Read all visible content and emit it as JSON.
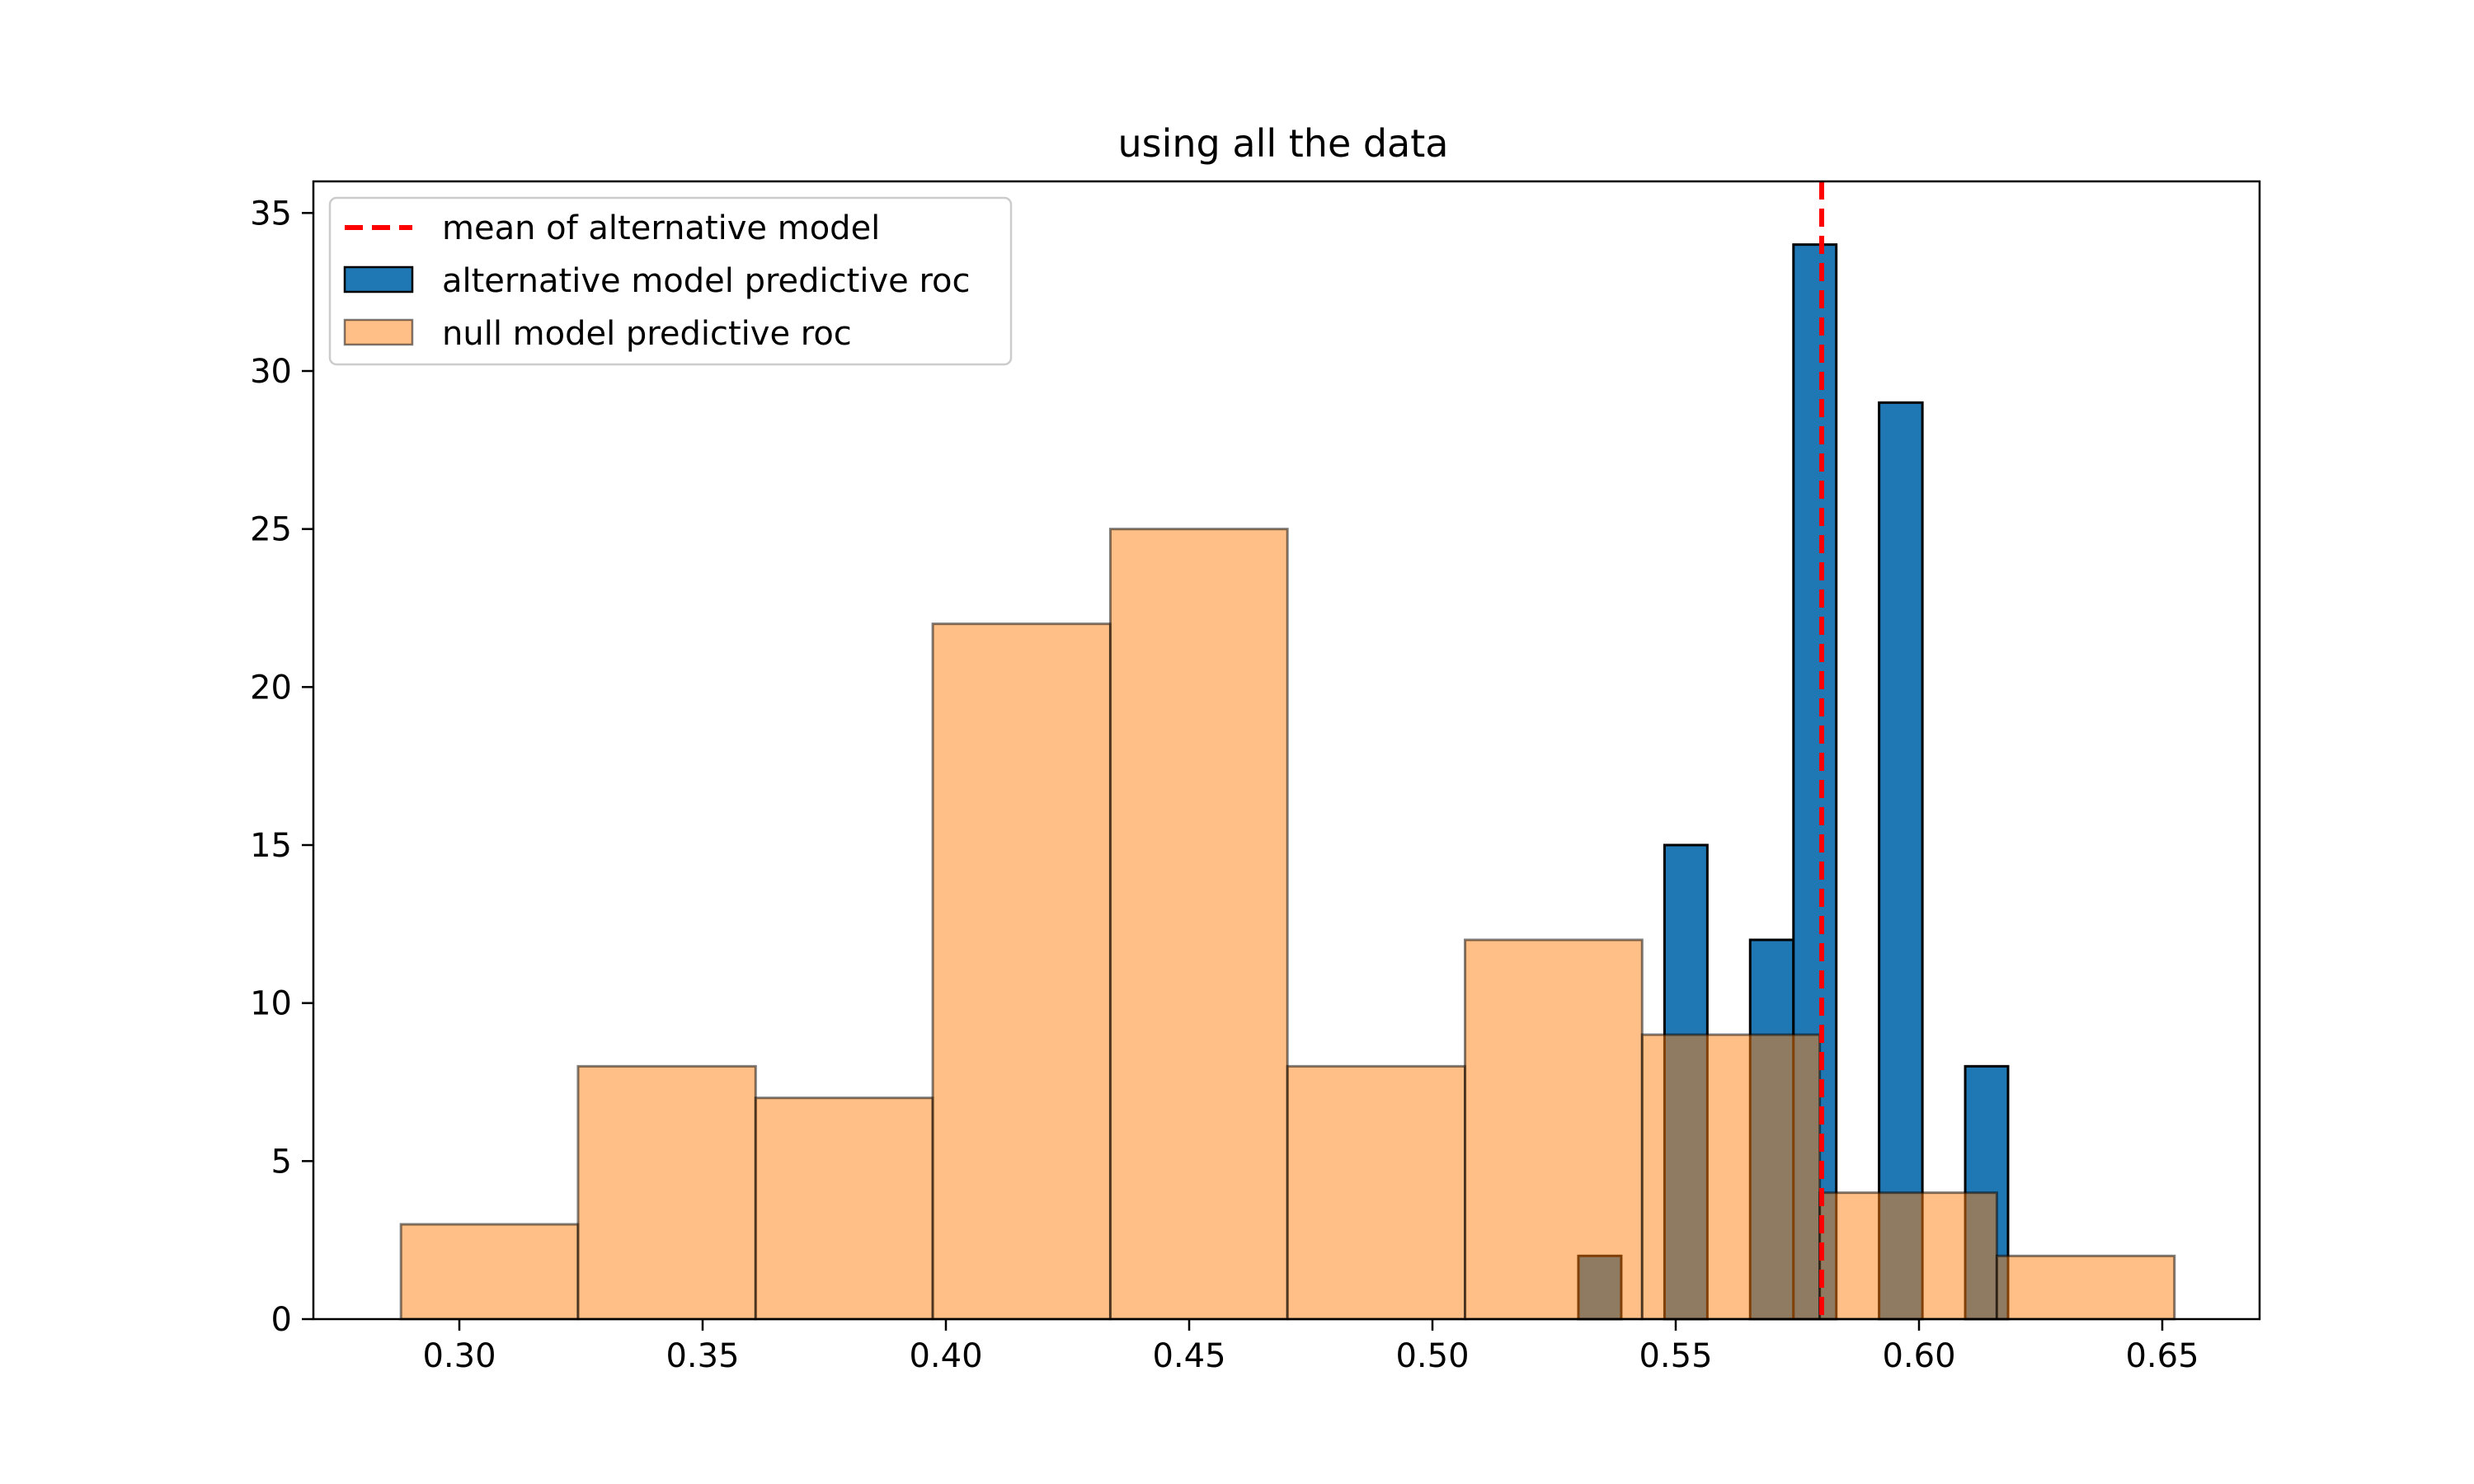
{
  "chart_data": {
    "type": "histogram",
    "title": "using all the data",
    "xlabel": "",
    "ylabel": "",
    "xlim": [
      0.27,
      0.67
    ],
    "ylim": [
      0,
      36
    ],
    "x_ticks": [
      0.3,
      0.35,
      0.4,
      0.45,
      0.5,
      0.55,
      0.6,
      0.65
    ],
    "x_tick_labels": [
      "0.30",
      "0.35",
      "0.40",
      "0.45",
      "0.50",
      "0.55",
      "0.60",
      "0.65"
    ],
    "y_ticks": [
      0,
      5,
      10,
      15,
      20,
      25,
      30,
      35
    ],
    "y_tick_labels": [
      "0",
      "5",
      "10",
      "15",
      "20",
      "25",
      "30",
      "35"
    ],
    "grid": false,
    "legend_position": "upper-left",
    "series": [
      {
        "name": "alternative model predictive roc",
        "color": "#1f77b4",
        "edge_color": "#000000",
        "opacity": 1,
        "bins": [
          {
            "x0": 0.53,
            "x1": 0.5388,
            "count": 2
          },
          {
            "x0": 0.5477,
            "x1": 0.5565,
            "count": 15
          },
          {
            "x0": 0.5653,
            "x1": 0.5742,
            "count": 12
          },
          {
            "x0": 0.5742,
            "x1": 0.583,
            "count": 34
          },
          {
            "x0": 0.5918,
            "x1": 0.6007,
            "count": 29
          },
          {
            "x0": 0.6095,
            "x1": 0.6183,
            "count": 8
          }
        ]
      },
      {
        "name": "null model predictive roc",
        "color": "#ff7f0e",
        "edge_color": "#000000",
        "opacity": 0.5,
        "bins": [
          {
            "x0": 0.288,
            "x1": 0.3244,
            "count": 3
          },
          {
            "x0": 0.3244,
            "x1": 0.3609,
            "count": 8
          },
          {
            "x0": 0.3609,
            "x1": 0.3973,
            "count": 7
          },
          {
            "x0": 0.3973,
            "x1": 0.4338,
            "count": 22
          },
          {
            "x0": 0.4338,
            "x1": 0.4702,
            "count": 25
          },
          {
            "x0": 0.4702,
            "x1": 0.5067,
            "count": 8
          },
          {
            "x0": 0.5067,
            "x1": 0.5431,
            "count": 12
          },
          {
            "x0": 0.5431,
            "x1": 0.5796,
            "count": 9
          },
          {
            "x0": 0.5796,
            "x1": 0.616,
            "count": 4
          },
          {
            "x0": 0.616,
            "x1": 0.6525,
            "count": 2
          }
        ]
      }
    ],
    "reference_line": {
      "name": "mean of alternative model",
      "x": 0.58,
      "color": "#ff0000",
      "style": "dashed"
    },
    "legend": [
      {
        "label": "mean of alternative model",
        "kind": "line"
      },
      {
        "label": "alternative model predictive roc",
        "kind": "patch"
      },
      {
        "label": "null model predictive roc",
        "kind": "patch"
      }
    ]
  }
}
